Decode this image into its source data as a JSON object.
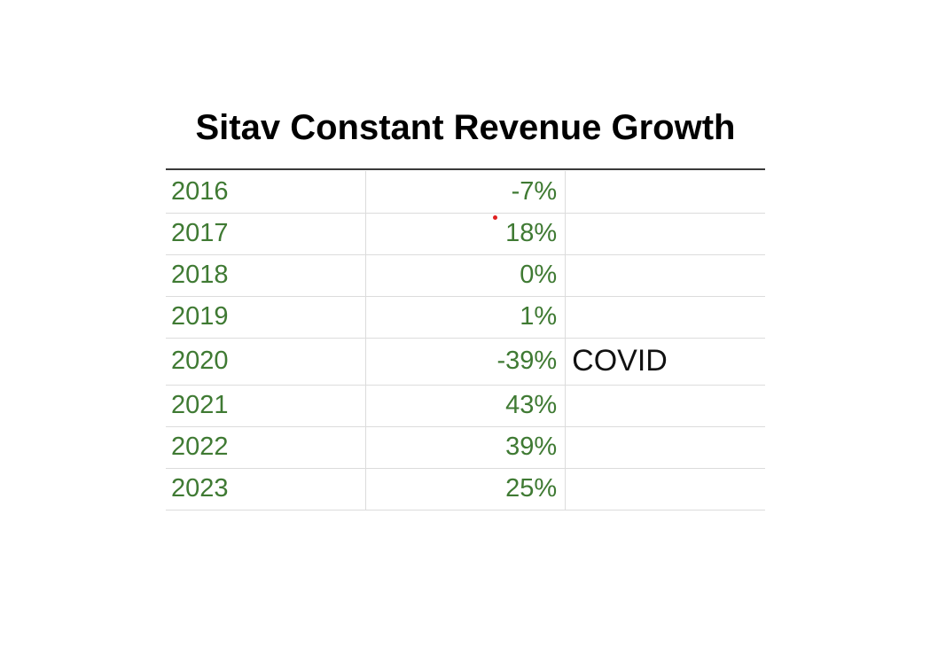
{
  "chart_data": {
    "type": "table",
    "title": "Sitav Constant Revenue Growth",
    "columns": [
      "",
      "",
      ""
    ],
    "rows": [
      {
        "year": "2016",
        "growth": "-7%",
        "note": ""
      },
      {
        "year": "2017",
        "growth": "18%",
        "note": ""
      },
      {
        "year": "2018",
        "growth": "0%",
        "note": ""
      },
      {
        "year": "2019",
        "growth": "1%",
        "note": ""
      },
      {
        "year": "2020",
        "growth": "-39%",
        "note": "COVID"
      },
      {
        "year": "2021",
        "growth": "43%",
        "note": ""
      },
      {
        "year": "2022",
        "growth": "39%",
        "note": ""
      },
      {
        "year": "2023",
        "growth": "25%",
        "note": ""
      }
    ],
    "values": [
      -7,
      18,
      0,
      1,
      -39,
      43,
      39,
      25
    ],
    "categories": [
      "2016",
      "2017",
      "2018",
      "2019",
      "2020",
      "2021",
      "2022",
      "2023"
    ]
  },
  "colors": {
    "value_text": "#3f7a33",
    "note_text": "#111111",
    "grid": "#dcdcdc",
    "header_rule": "#3a3a3a",
    "marker": "#e02020"
  }
}
